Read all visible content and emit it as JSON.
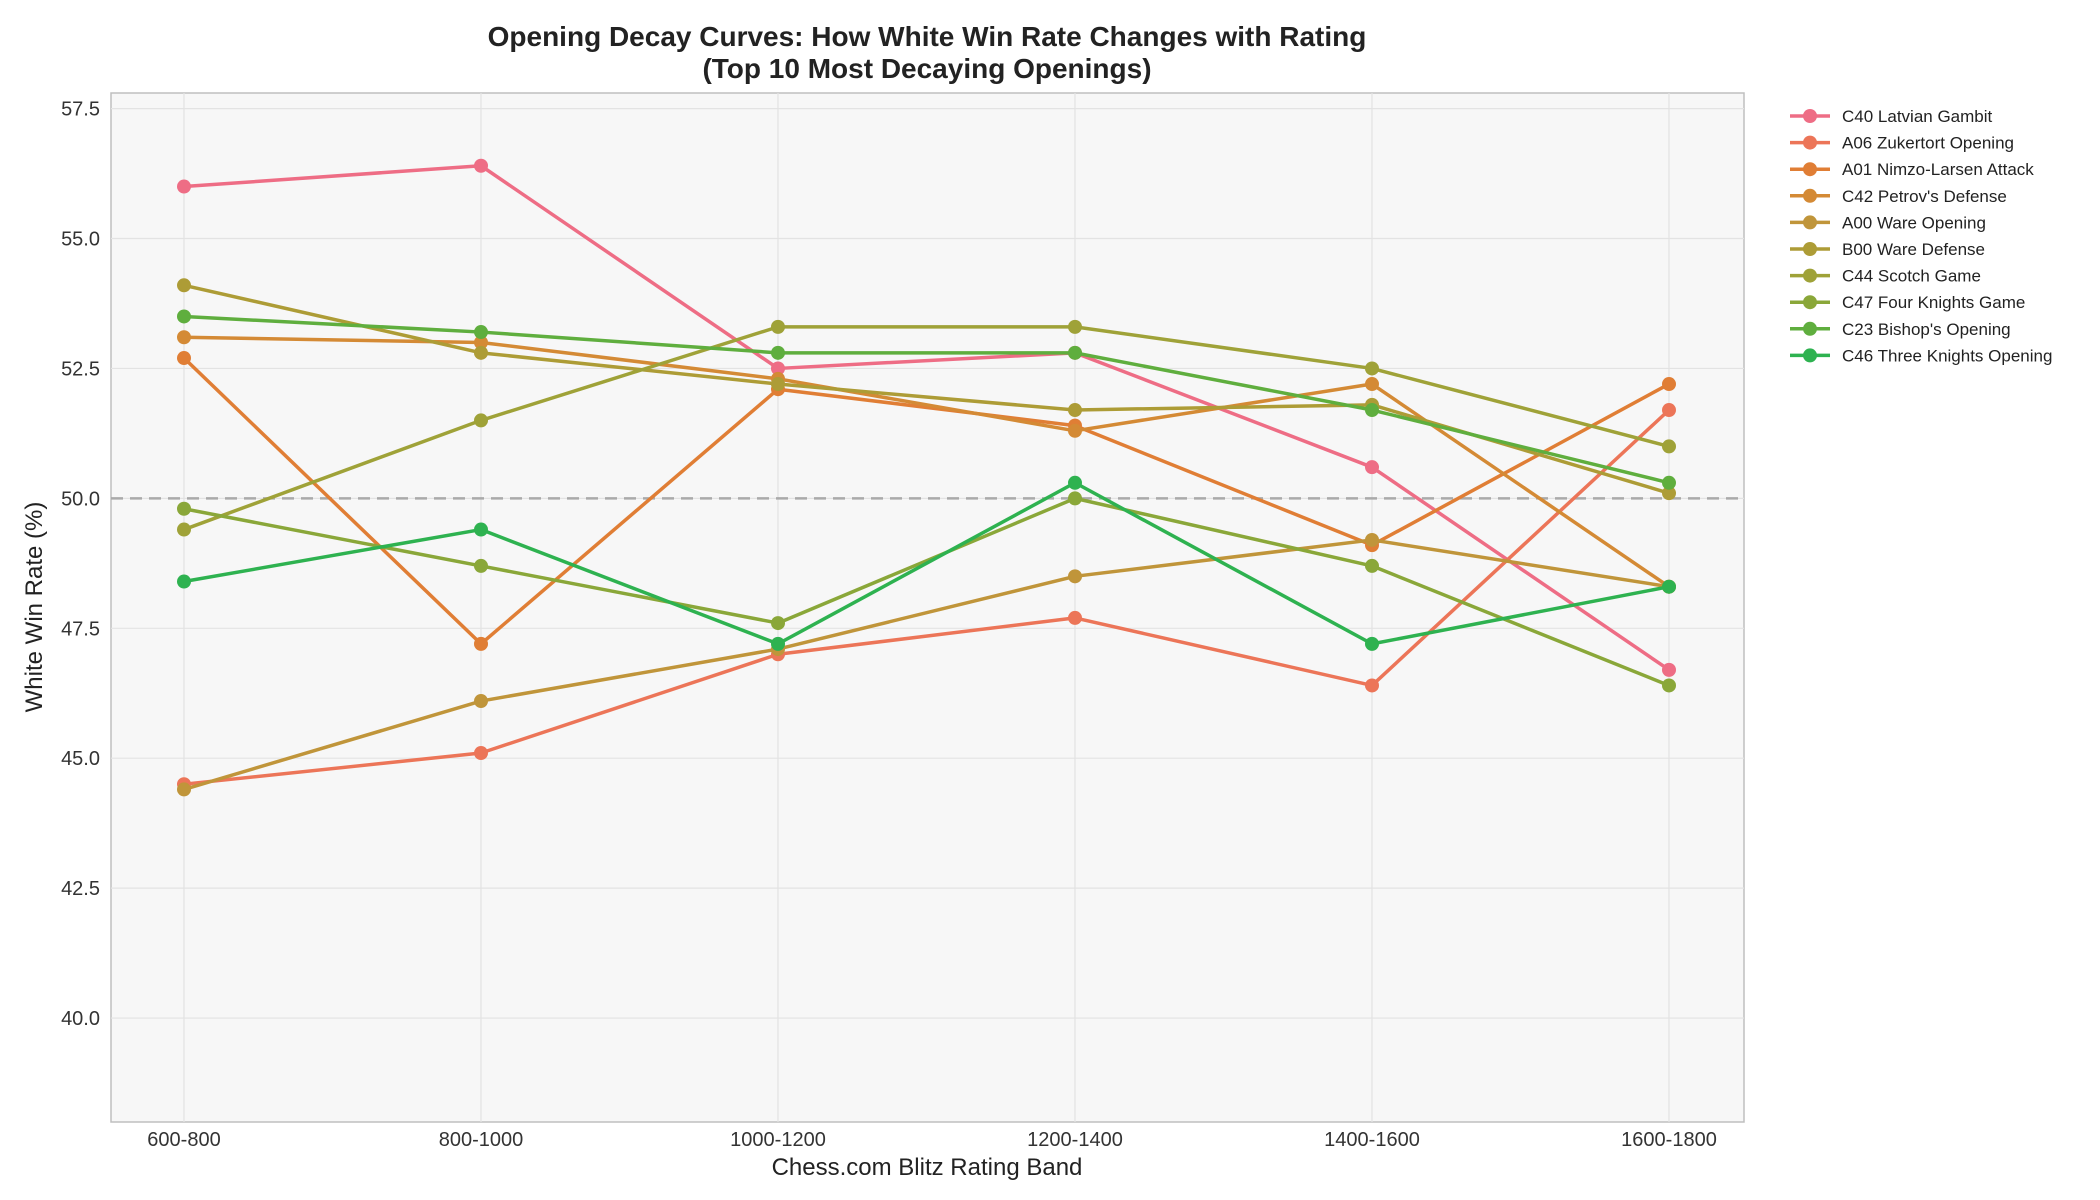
{
  "chart_data": {
    "type": "line",
    "title": "Opening Decay Curves: How White Win Rate Changes with Rating",
    "subtitle": "(Top 10 Most Decaying Openings)",
    "xlabel": "Chess.com Blitz Rating Band",
    "ylabel": "White Win Rate (%)",
    "categories": [
      "600-800",
      "800-1000",
      "1000-1200",
      "1200-1400",
      "1400-1600",
      "1600-1800"
    ],
    "ylim": [
      38.0,
      57.8
    ],
    "yticks": [
      "40.0",
      "42.5",
      "45.0",
      "47.5",
      "50.0",
      "52.5",
      "55.0",
      "57.5"
    ],
    "reference_line": 50.0,
    "grid": true,
    "legend_position": "outside-right",
    "series": [
      {
        "name": "C40 Latvian Gambit",
        "color": "#ee6d85",
        "values": [
          56.0,
          56.4,
          52.5,
          52.8,
          50.6,
          46.7
        ]
      },
      {
        "name": "A06 Zukertort Opening",
        "color": "#ec7558",
        "values": [
          44.5,
          45.1,
          47.0,
          47.7,
          46.4,
          51.7
        ]
      },
      {
        "name": "A01 Nimzo-Larsen Attack",
        "color": "#e07e35",
        "values": [
          52.7,
          47.2,
          52.1,
          51.4,
          49.1,
          52.2
        ]
      },
      {
        "name": "C42 Petrov's Defense",
        "color": "#d48a35",
        "values": [
          53.1,
          53.0,
          52.3,
          51.3,
          52.2,
          48.3
        ]
      },
      {
        "name": "A00 Ware Opening",
        "color": "#c0953a",
        "values": [
          44.4,
          46.1,
          47.1,
          48.5,
          49.2,
          48.3
        ]
      },
      {
        "name": "B00 Ware Defense",
        "color": "#ad9c36",
        "values": [
          54.1,
          52.8,
          52.2,
          51.7,
          51.8,
          50.1
        ]
      },
      {
        "name": "C44 Scotch Game",
        "color": "#9fa238",
        "values": [
          49.4,
          51.5,
          53.3,
          53.3,
          52.5,
          51.0
        ]
      },
      {
        "name": "C47 Four Knights Game",
        "color": "#8aa739",
        "values": [
          49.8,
          48.7,
          47.6,
          50.0,
          48.7,
          46.4
        ]
      },
      {
        "name": "C23 Bishop's Opening",
        "color": "#5fae3e",
        "values": [
          53.5,
          53.2,
          52.8,
          52.8,
          51.7,
          50.3
        ]
      },
      {
        "name": "C46 Three Knights Opening",
        "color": "#2eb250",
        "values": [
          48.4,
          49.4,
          47.2,
          50.3,
          47.2,
          48.3
        ]
      }
    ]
  }
}
